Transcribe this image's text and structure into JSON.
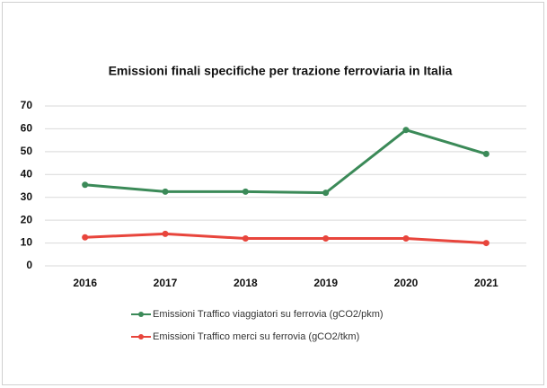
{
  "chart_data": {
    "type": "line",
    "title": "Emissioni finali specifiche per trazione ferroviaria in Italia",
    "categories": [
      "2016",
      "2017",
      "2018",
      "2019",
      "2020",
      "2021"
    ],
    "series": [
      {
        "name": "Emissioni Traffico viaggiatori su ferrovia (gCO2/pkm)",
        "color": "#3b8a58",
        "values": [
          35.5,
          32.5,
          32.5,
          32,
          59.5,
          49
        ]
      },
      {
        "name": "Emissioni Traffico merci su ferrovia (gCO2/tkm)",
        "color": "#e8453c",
        "values": [
          12.5,
          14,
          12,
          12,
          12,
          10
        ]
      }
    ],
    "ylim": [
      0,
      70
    ],
    "yticks": [
      0,
      10,
      20,
      30,
      40,
      50,
      60,
      70
    ],
    "grid": true,
    "legend": "bottom"
  }
}
